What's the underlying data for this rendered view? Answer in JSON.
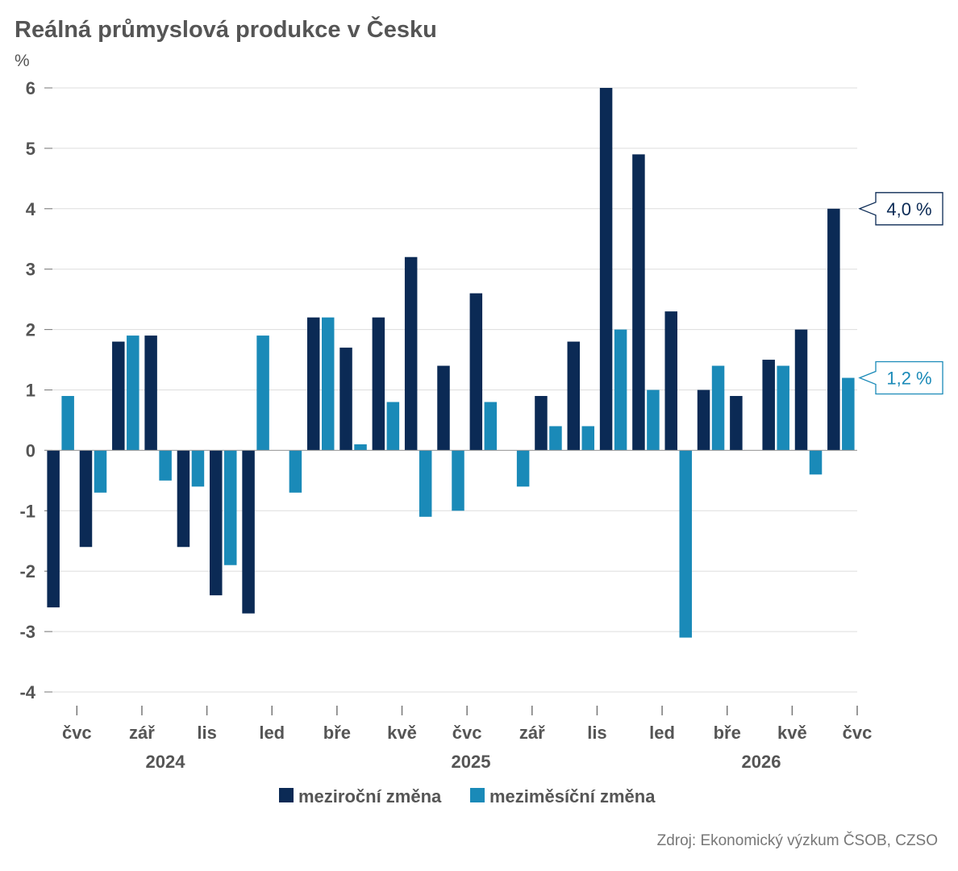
{
  "colors": {
    "yoy": "#0b2a55",
    "mom": "#1a8ab8",
    "text": "#555555",
    "grid": "#dddddd"
  },
  "chart_data": {
    "type": "bar",
    "title": "Reálná průmyslová produkce v Česku",
    "ylabel": "%",
    "ylim": [
      -4,
      6
    ],
    "yticks": [
      6,
      5,
      4,
      3,
      2,
      1,
      0,
      -1,
      -2,
      -3,
      -4
    ],
    "grid": true,
    "legend_position": "bottom",
    "categories": [
      "2024-06",
      "2024-07",
      "2024-08",
      "2024-09",
      "2024-10",
      "2024-11",
      "2024-12",
      "2025-01",
      "2025-02",
      "2025-03",
      "2025-04",
      "2025-05",
      "2025-06",
      "2025-07",
      "2025-08",
      "2025-09",
      "2025-10",
      "2025-11",
      "2025-12",
      "2026-01",
      "2026-02",
      "2026-03",
      "2026-04",
      "2026-05",
      "2026-06"
    ],
    "x_tick_labels": [
      "čvc",
      "zář",
      "lis",
      "led",
      "bře",
      "kvě",
      "čvc",
      "zář",
      "lis",
      "led",
      "bře",
      "kvě",
      "čvc"
    ],
    "year_labels": [
      "2024",
      "2025",
      "2026"
    ],
    "series": [
      {
        "name": "meziroční změna",
        "values": [
          -2.6,
          -1.6,
          1.8,
          1.9,
          -1.6,
          -2.4,
          -2.7,
          null,
          2.2,
          1.7,
          2.2,
          3.2,
          1.4,
          2.6,
          null,
          0.9,
          1.8,
          6.0,
          4.9,
          2.3,
          1.0,
          0.9,
          1.5,
          2.0,
          4.0
        ]
      },
      {
        "name": "meziměsíční změna",
        "values": [
          0.9,
          -0.7,
          1.9,
          -0.5,
          -0.6,
          -1.9,
          1.9,
          -0.7,
          2.2,
          0.1,
          0.8,
          -1.1,
          -1.0,
          0.8,
          -0.6,
          0.4,
          0.4,
          2.0,
          1.0,
          -3.1,
          1.4,
          null,
          1.4,
          -0.4,
          1.2
        ]
      }
    ],
    "callouts": [
      "4,0 %",
      "1,2 %"
    ]
  },
  "source": "Zdroj: Ekonomický výzkum ČSOB, CZSO"
}
